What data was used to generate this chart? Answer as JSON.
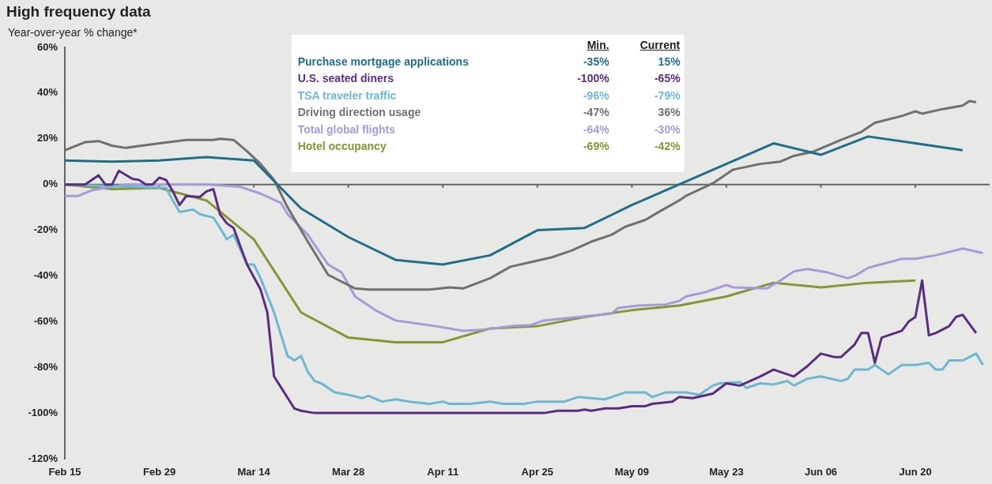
{
  "chart_data": {
    "type": "line",
    "title": "High frequency data",
    "ylabel": "Year-over-year % change*",
    "legend": "top",
    "xlim": [
      "--02-15",
      "--07-01"
    ],
    "xticks": [
      {
        "value": "--02-15",
        "label": "Feb 15"
      },
      {
        "value": "--02-29",
        "label": "Feb 29"
      },
      {
        "value": "--03-14",
        "label": "Mar 14"
      },
      {
        "value": "--03-28",
        "label": "Mar 28"
      },
      {
        "value": "--04-11",
        "label": "Apr 11"
      },
      {
        "value": "--04-25",
        "label": "Apr 25"
      },
      {
        "value": "--05-09",
        "label": "May 09"
      },
      {
        "value": "--05-23",
        "label": "May 23"
      },
      {
        "value": "--06-06",
        "label": "Jun 06"
      },
      {
        "value": "--06-20",
        "label": "Jun 20"
      }
    ],
    "ylim": [
      -120,
      60
    ],
    "yticks": [
      {
        "value": -120,
        "label": "-120%"
      },
      {
        "value": -100,
        "label": "-100%"
      },
      {
        "value": -80,
        "label": "-80%"
      },
      {
        "value": -60,
        "label": "-60%"
      },
      {
        "value": -40,
        "label": "-40%"
      },
      {
        "value": -20,
        "label": "-20%"
      },
      {
        "value": 0,
        "label": "0%"
      },
      {
        "value": 20,
        "label": "20%"
      },
      {
        "value": 40,
        "label": "40%"
      },
      {
        "value": 60,
        "label": "60%"
      }
    ],
    "annotations": [
      "Min.",
      "Current",
      "-35%",
      "15%",
      "-100%",
      "-65%",
      "-96%",
      "-79%",
      "-47%",
      "36%",
      "-64%",
      "-30%",
      "-69%",
      "-42%"
    ],
    "series": [
      {
        "name": "Purchase mortgage applications",
        "color": "#1f6f8b",
        "x": [
          "--02-15",
          "--02-22",
          "--02-29",
          "--03-07",
          "--03-14",
          "--03-21",
          "--03-28",
          "--04-04",
          "--04-11",
          "--04-18",
          "--04-25",
          "--05-02",
          "--05-09",
          "--05-16",
          "--05-23",
          "--05-30",
          "--06-06",
          "--06-13",
          "--06-20",
          "--06-27"
        ],
        "values": [
          10.5,
          10,
          10.5,
          12,
          10.5,
          -10.5,
          -23,
          -33,
          -35,
          -31,
          -20,
          -19,
          -9,
          0,
          9,
          18,
          13,
          21,
          18,
          15
        ]
      },
      {
        "name": "U.S. seated diners",
        "color": "#5a2d82",
        "x": [
          "--02-15",
          "--02-18",
          "--02-20",
          "--02-21",
          "--02-22",
          "--02-23",
          "--02-25",
          "--02-26",
          "--02-27",
          "--02-28",
          "--02-29",
          "--03-01",
          "--03-02",
          "--03-03",
          "--03-04",
          "--03-06",
          "--03-07",
          "--03-08",
          "--03-09",
          "--03-10",
          "--03-11",
          "--03-13",
          "--03-15",
          "--03-16",
          "--03-17",
          "--03-20",
          "--03-21",
          "--03-23",
          "--04-16",
          "--04-26",
          "--04-28",
          "--05-01",
          "--05-02",
          "--05-03",
          "--05-05",
          "--05-07",
          "--05-09",
          "--05-11",
          "--05-12",
          "--05-15",
          "--05-16",
          "--05-18",
          "--05-21",
          "--05-23",
          "--05-25",
          "--05-28",
          "--05-30",
          "--06-02",
          "--06-04",
          "--06-06",
          "--06-08",
          "--06-09",
          "--06-11",
          "--06-12",
          "--06-13",
          "--06-14",
          "--06-15",
          "--06-18",
          "--06-19",
          "--06-20",
          "--06-21",
          "--06-22",
          "--06-23",
          "--06-25",
          "--06-26",
          "--06-27",
          "--06-29"
        ],
        "values": [
          0,
          0,
          4,
          0,
          0,
          6,
          2.5,
          2,
          0,
          0,
          3,
          2,
          -3,
          -9,
          -5,
          -5.5,
          -3,
          -2,
          -13,
          -17,
          -19,
          -35,
          -46,
          -56,
          -84,
          -98,
          -99,
          -100,
          -100,
          -100,
          -99,
          -99,
          -98.5,
          -99,
          -98,
          -98,
          -97,
          -97,
          -96,
          -95,
          -93,
          -93.5,
          -91.5,
          -87,
          -88,
          -84,
          -81,
          -84,
          -79.5,
          -74,
          -75.5,
          -75.5,
          -70,
          -65,
          -65,
          -78,
          -67,
          -64,
          -60,
          -58,
          -42,
          -66,
          -65,
          -62,
          -58,
          -57,
          -65
        ]
      },
      {
        "name": "TSA traveler traffic",
        "color": "#6cb8d4",
        "x": [
          "--02-15",
          "--03-01",
          "--03-02",
          "--03-03",
          "--03-05",
          "--03-06",
          "--03-08",
          "--03-09",
          "--03-10",
          "--03-11",
          "--03-13",
          "--03-14",
          "--03-15",
          "--03-17",
          "--03-19",
          "--03-20",
          "--03-21",
          "--03-22",
          "--03-23",
          "--03-24",
          "--03-26",
          "--03-28",
          "--03-30",
          "--03-31",
          "--04-02",
          "--04-04",
          "--04-06",
          "--04-09",
          "--04-11",
          "--04-12",
          "--04-15",
          "--04-18",
          "--04-20",
          "--04-23",
          "--04-25",
          "--04-29",
          "--05-01",
          "--05-05",
          "--05-08",
          "--05-11",
          "--05-12",
          "--05-14",
          "--05-17",
          "--05-19",
          "--05-21",
          "--05-22",
          "--05-25",
          "--05-26",
          "--05-28",
          "--05-30",
          "--06-01",
          "--06-02",
          "--06-04",
          "--06-06",
          "--06-09",
          "--06-10",
          "--06-11",
          "--06-13",
          "--06-14",
          "--06-16",
          "--06-18",
          "--06-20",
          "--06-22",
          "--06-23",
          "--06-24",
          "--06-25",
          "--06-27",
          "--06-29",
          "--06-30"
        ],
        "values": [
          0,
          -1.5,
          -7,
          -12,
          -11,
          -13,
          -14.5,
          -19,
          -24,
          -22,
          -35,
          -35,
          -41,
          -56,
          -75,
          -77,
          -75,
          -82,
          -86,
          -87,
          -91,
          -92,
          -93.5,
          -92.5,
          -95,
          -94,
          -95,
          -96,
          -95,
          -96,
          -96,
          -95,
          -96,
          -96,
          -95,
          -95,
          -93,
          -94,
          -91,
          -91,
          -93,
          -91,
          -91,
          -92,
          -88,
          -87,
          -86.5,
          -89,
          -87,
          -87.5,
          -86,
          -88,
          -85,
          -84,
          -86,
          -85,
          -81,
          -81,
          -79,
          -83,
          -79,
          -79,
          -78,
          -81,
          -81,
          -77,
          -77,
          -74,
          -79
        ]
      },
      {
        "name": "Driving direction usage",
        "color": "#707070",
        "x": [
          "--02-15",
          "--02-18",
          "--02-20",
          "--02-22",
          "--02-24",
          "--02-29",
          "--03-04",
          "--03-08",
          "--03-09",
          "--03-11",
          "--03-13",
          "--03-15",
          "--03-17",
          "--03-19",
          "--03-22",
          "--03-25",
          "--03-29",
          "--03-31",
          "--04-09",
          "--04-12",
          "--04-14",
          "--04-18",
          "--04-21",
          "--04-24",
          "--04-27",
          "--04-30",
          "--05-03",
          "--05-06",
          "--05-08",
          "--05-11",
          "--05-13",
          "--05-16",
          "--05-17",
          "--05-21",
          "--05-24",
          "--05-28",
          "--05-31",
          "--06-02",
          "--06-05",
          "--06-09",
          "--06-12",
          "--06-14",
          "--06-18",
          "--06-20",
          "--06-21",
          "--06-24",
          "--06-27",
          "--06-28",
          "--06-29"
        ],
        "values": [
          15,
          18.5,
          19,
          17,
          16,
          18,
          19.5,
          19.5,
          20,
          19.5,
          14.5,
          9,
          2,
          -10,
          -25,
          -39.5,
          -45.5,
          -46,
          -46,
          -45,
          -45.5,
          -41,
          -36,
          -34,
          -32,
          -29,
          -25,
          -22,
          -18.5,
          -15.5,
          -12,
          -7,
          -5,
          0.5,
          6.5,
          9,
          10,
          12.5,
          14.5,
          19.5,
          23,
          27,
          30,
          32,
          31,
          33,
          34.5,
          36.5,
          36
        ]
      },
      {
        "name": "Total global flights",
        "color": "#a898dc",
        "x": [
          "--02-15",
          "--02-17",
          "--02-19",
          "--02-22",
          "--02-24",
          "--02-29",
          "--03-07",
          "--03-12",
          "--03-15",
          "--03-18",
          "--03-19",
          "--03-22",
          "--03-25",
          "--03-27",
          "--03-29",
          "--04-01",
          "--04-04",
          "--04-10",
          "--04-14",
          "--04-17",
          "--04-21",
          "--04-24",
          "--04-26",
          "--05-01",
          "--05-06",
          "--05-07",
          "--05-10",
          "--05-14",
          "--05-16",
          "--05-17",
          "--05-20",
          "--05-23",
          "--05-24",
          "--05-29",
          "--05-31",
          "--06-02",
          "--06-04",
          "--06-07",
          "--06-10",
          "--06-11",
          "--06-13",
          "--06-18",
          "--06-20",
          "--06-23",
          "--06-27",
          "--06-30"
        ],
        "values": [
          -5,
          -5,
          -2.5,
          -1,
          0,
          0,
          0,
          -1,
          -4,
          -8,
          -13,
          -22,
          -35,
          -38.5,
          -49,
          -55,
          -59.5,
          -62,
          -64,
          -63.5,
          -62,
          -61.5,
          -59.5,
          -58,
          -56.5,
          -54,
          -53,
          -52.5,
          -51,
          -49,
          -47,
          -44,
          -45,
          -45.5,
          -42,
          -38,
          -37,
          -38.5,
          -41,
          -40,
          -36.5,
          -32.5,
          -32.5,
          -31,
          -28,
          -30
        ]
      },
      {
        "name": "Hotel occupancy",
        "color": "#869632",
        "x": [
          "--02-15",
          "--02-22",
          "--02-29",
          "--03-07",
          "--03-14",
          "--03-21",
          "--03-28",
          "--04-04",
          "--04-11",
          "--04-18",
          "--04-25",
          "--05-02",
          "--05-09",
          "--05-16",
          "--05-23",
          "--05-30",
          "--06-06",
          "--06-13",
          "--06-20"
        ],
        "values": [
          0,
          -2,
          -1.5,
          -7,
          -24,
          -56,
          -67,
          -69,
          -69,
          -63,
          -62,
          -58,
          -55,
          -53,
          -49,
          -43,
          -45,
          -43,
          -42
        ]
      }
    ]
  }
}
